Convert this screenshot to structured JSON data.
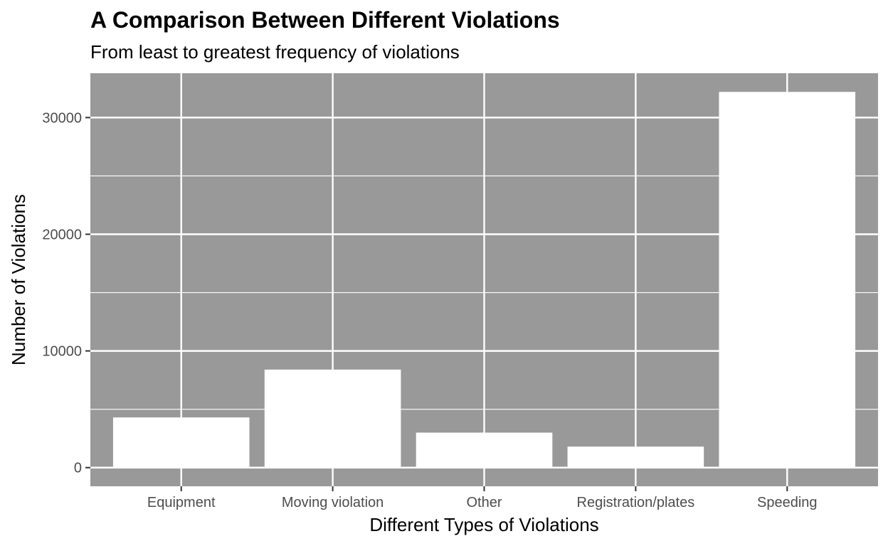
{
  "chart_data": {
    "type": "bar",
    "title": "A Comparison Between Different Violations",
    "subtitle": "From least to greatest frequency of violations",
    "xlabel": "Different Types of Violations",
    "ylabel": "Number of Violations",
    "categories": [
      "Equipment",
      "Moving violation",
      "Other",
      "Registration/plates",
      "Speeding"
    ],
    "values": [
      4300,
      8400,
      3000,
      1800,
      32200
    ],
    "ylim": [
      -1600,
      33800
    ],
    "yticks": [
      0,
      10000,
      20000,
      30000
    ],
    "ytick_labels": [
      "0",
      "10000",
      "20000",
      "30000"
    ],
    "grid": true,
    "panel_color": "#999999",
    "bar_color": "#ffffff",
    "grid_color": "#ffffff"
  }
}
